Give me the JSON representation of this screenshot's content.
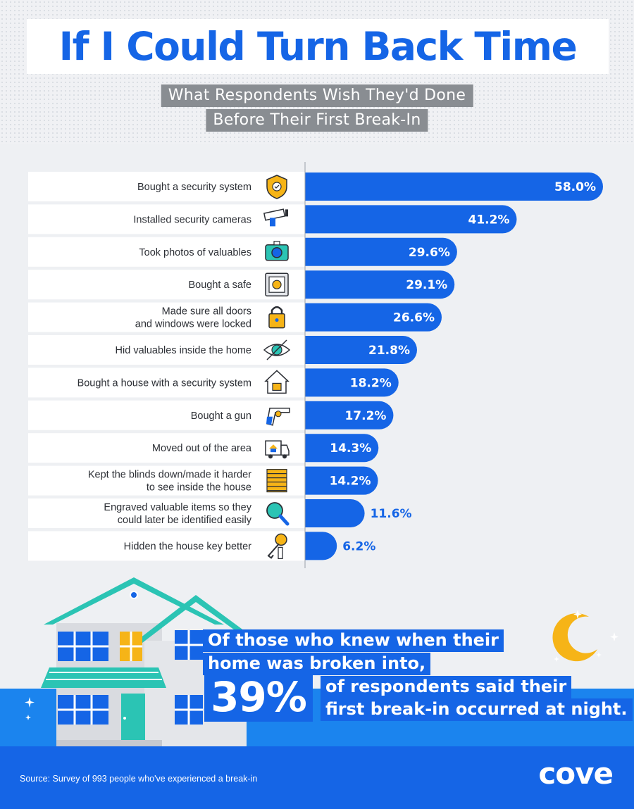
{
  "header": {
    "title": "If I Could Turn Back Time",
    "subtitle_line1": "What Respondents Wish They'd Done",
    "subtitle_line2": "Before Their First Break-In"
  },
  "colors": {
    "bar": "#1565e6",
    "label_bg": "#ffffff",
    "axis": "#9aa0a8",
    "accent_teal": "#2bc4b4",
    "accent_yellow": "#f6b417"
  },
  "chart_data": {
    "type": "bar",
    "orientation": "horizontal",
    "categories": [
      "Bought a security system",
      "Installed security cameras",
      "Took photos of valuables",
      "Bought a safe",
      "Made sure all doors\nand windows were locked",
      "Hid valuables inside the home",
      "Bought a house with a security system",
      "Bought a gun",
      "Moved out of the area",
      "Kept the blinds down/made it harder\nto see inside the house",
      "Engraved valuable items so they\ncould later be identified easily",
      "Hidden the house key better"
    ],
    "icons": [
      "shield-icon",
      "security-camera-icon",
      "camera-icon",
      "safe-icon",
      "padlock-icon",
      "crossed-eye-icon",
      "house-lock-icon",
      "gun-icon",
      "moving-truck-icon",
      "blinds-icon",
      "magnifier-icon",
      "keys-icon"
    ],
    "values": [
      58.0,
      41.2,
      29.6,
      29.1,
      26.6,
      21.8,
      18.2,
      17.2,
      14.3,
      14.2,
      11.6,
      6.2
    ],
    "value_labels": [
      "58.0%",
      "41.2%",
      "29.6%",
      "29.1%",
      "26.6%",
      "21.8%",
      "18.2%",
      "17.2%",
      "14.3%",
      "14.2%",
      "11.6%",
      "6.2%"
    ],
    "xlim": [
      0,
      58.0
    ],
    "grid": false,
    "legend": "none"
  },
  "callout": {
    "line1": "Of those who knew when their",
    "line2": "home was broken into,",
    "big_value": "39%",
    "line3": "of respondents said their",
    "line4": "first break-in occurred at night."
  },
  "footer": {
    "source": "Source: Survey of 993 people who've experienced a break-in",
    "logo": "cove"
  }
}
